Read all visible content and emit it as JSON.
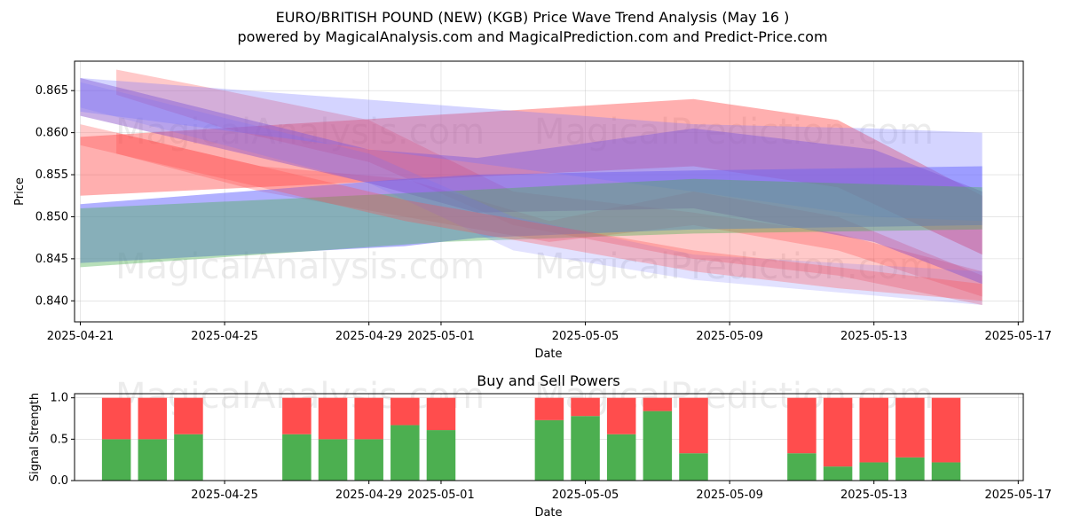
{
  "header": {
    "title": "EURO/BRITISH POUND (NEW) (KGB) Price Wave Trend Analysis (May 16 )",
    "subtitle": "powered by MagicalAnalysis.com and MagicalPrediction.com and Predict-Price.com"
  },
  "watermarks": [
    "MagicalAnalysis.com",
    "MagicalPrediction.com"
  ],
  "colors": {
    "red": "#ff4d4d",
    "blue": "#6f6fff",
    "green": "#4caf50",
    "purple": "#8a4fc7",
    "grid": "#b0b0b0"
  },
  "chart_data": [
    {
      "type": "area",
      "title": "",
      "xlabel": "Date",
      "ylabel": "Price",
      "x_range": [
        "2025-04-21",
        "2025-05-17"
      ],
      "ylim": [
        0.8375,
        0.8685
      ],
      "x_ticks": [
        "2025-04-21",
        "2025-04-25",
        "2025-04-29",
        "2025-05-01",
        "2025-05-05",
        "2025-05-09",
        "2025-05-13",
        "2025-05-17"
      ],
      "y_ticks": [
        "0.840",
        "0.845",
        "0.850",
        "0.855",
        "0.860",
        "0.865"
      ],
      "grid": true,
      "series": [
        {
          "name": "red wave 1",
          "color": "red",
          "alpha": 0.45,
          "x": [
            "2025-04-21",
            "2025-05-08",
            "2025-05-12",
            "2025-05-16"
          ],
          "upper": [
            0.8595,
            0.864,
            0.8615,
            0.8525
          ],
          "lower": [
            0.8525,
            0.856,
            0.8535,
            0.8455
          ]
        },
        {
          "name": "red wave 2",
          "color": "red",
          "alpha": 0.3,
          "x": [
            "2025-04-22",
            "2025-04-25",
            "2025-04-29",
            "2025-05-03",
            "2025-05-08",
            "2025-05-12",
            "2025-05-16"
          ],
          "upper": [
            0.8675,
            0.865,
            0.8615,
            0.853,
            0.8505,
            0.848,
            0.8435
          ],
          "lower": [
            0.8645,
            0.8605,
            0.8565,
            0.849,
            0.845,
            0.843,
            0.8395
          ]
        },
        {
          "name": "red wave 3",
          "color": "red",
          "alpha": 0.3,
          "x": [
            "2025-04-22",
            "2025-04-26",
            "2025-04-30",
            "2025-05-04",
            "2025-05-08",
            "2025-05-12",
            "2025-05-16"
          ],
          "upper": [
            0.86,
            0.856,
            0.8545,
            0.8495,
            0.853,
            0.85,
            0.843
          ],
          "lower": [
            0.8575,
            0.853,
            0.85,
            0.847,
            0.849,
            0.846,
            0.8405
          ]
        },
        {
          "name": "blue wave 1",
          "color": "blue",
          "alpha": 0.55,
          "x": [
            "2025-04-21",
            "2025-04-30",
            "2025-05-02",
            "2025-05-08",
            "2025-05-16"
          ],
          "upper": [
            0.8515,
            0.8545,
            0.855,
            0.8555,
            0.856
          ],
          "lower": [
            0.8445,
            0.8465,
            0.8475,
            0.8485,
            0.849
          ]
        },
        {
          "name": "purple wave",
          "color": "purple",
          "alpha": 0.45,
          "x": [
            "2025-04-21",
            "2025-04-29",
            "2025-05-02",
            "2025-05-08",
            "2025-05-13",
            "2025-05-16"
          ],
          "upper": [
            0.8665,
            0.858,
            0.857,
            0.8605,
            0.858,
            0.853
          ],
          "lower": [
            0.862,
            0.854,
            0.8505,
            0.851,
            0.847,
            0.842
          ]
        },
        {
          "name": "blue wave 2",
          "color": "blue",
          "alpha": 0.3,
          "x": [
            "2025-04-21",
            "2025-05-08",
            "2025-05-13",
            "2025-05-16"
          ],
          "upper": [
            0.8665,
            0.861,
            0.8605,
            0.86
          ],
          "lower": [
            0.8625,
            0.853,
            0.85,
            0.8495
          ]
        },
        {
          "name": "green wave",
          "color": "green",
          "alpha": 0.4,
          "x": [
            "2025-04-21",
            "2025-05-01",
            "2025-05-08",
            "2025-05-16"
          ],
          "upper": [
            0.851,
            0.853,
            0.8545,
            0.8535
          ],
          "lower": [
            0.844,
            0.847,
            0.848,
            0.8485
          ]
        },
        {
          "name": "lavender wave",
          "color": "blue",
          "alpha": 0.2,
          "x": [
            "2025-04-21",
            "2025-04-29",
            "2025-05-03",
            "2025-05-08",
            "2025-05-12",
            "2025-05-16"
          ],
          "upper": [
            0.866,
            0.8575,
            0.85,
            0.8455,
            0.8445,
            0.8435
          ],
          "lower": [
            0.863,
            0.854,
            0.846,
            0.8425,
            0.841,
            0.8395
          ]
        },
        {
          "name": "pink lower wave",
          "color": "red",
          "alpha": 0.3,
          "x": [
            "2025-04-21",
            "2025-04-30",
            "2025-05-04",
            "2025-05-08",
            "2025-05-12",
            "2025-05-16"
          ],
          "upper": [
            0.861,
            0.852,
            0.849,
            0.846,
            0.844,
            0.842
          ],
          "lower": [
            0.8585,
            0.8495,
            0.8465,
            0.8435,
            0.8415,
            0.84
          ]
        }
      ]
    },
    {
      "type": "bar",
      "stacked": true,
      "title": "Buy and Sell Powers",
      "xlabel": "Date",
      "ylabel": "Signal Strength",
      "ylim": [
        0,
        1.05
      ],
      "y_ticks": [
        "0.0",
        "0.5",
        "1.0"
      ],
      "x_ticks": [
        "2025-04-25",
        "2025-04-29",
        "2025-05-01",
        "2025-05-05",
        "2025-05-09",
        "2025-05-13",
        "2025-05-17"
      ],
      "categories": [
        "2025-04-22",
        "2025-04-23",
        "2025-04-24",
        "2025-04-27",
        "2025-04-28",
        "2025-04-29",
        "2025-04-30",
        "2025-05-01",
        "2025-05-04",
        "2025-05-05",
        "2025-05-06",
        "2025-05-07",
        "2025-05-08",
        "2025-05-11",
        "2025-05-12",
        "2025-05-13",
        "2025-05-14",
        "2025-05-15"
      ],
      "series": [
        {
          "name": "Buy",
          "color": "#4caf50",
          "values": [
            0.5,
            0.5,
            0.56,
            0.56,
            0.5,
            0.5,
            0.67,
            0.61,
            0.73,
            0.78,
            0.56,
            0.84,
            0.33,
            0.33,
            0.17,
            0.22,
            0.28,
            0.22
          ]
        },
        {
          "name": "Sell",
          "color": "#ff4d4d",
          "values": [
            0.5,
            0.5,
            0.44,
            0.44,
            0.5,
            0.5,
            0.33,
            0.39,
            0.27,
            0.22,
            0.44,
            0.16,
            0.67,
            0.67,
            0.83,
            0.78,
            0.72,
            0.78
          ]
        }
      ]
    }
  ]
}
